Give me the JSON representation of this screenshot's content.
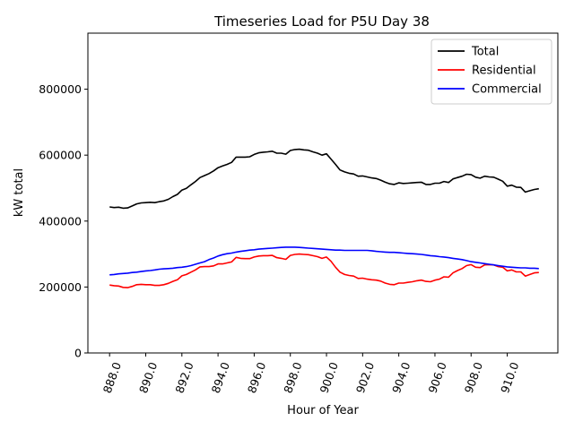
{
  "chart_data": {
    "type": "line",
    "title": "Timeseries Load for P5U   Day 38",
    "xlabel": "Hour of Year",
    "ylabel": "kW total",
    "xlim": [
      886.8,
      912.8
    ],
    "ylim": [
      0,
      970000
    ],
    "xticks": [
      888.0,
      890.0,
      892.0,
      894.0,
      896.0,
      898.0,
      900.0,
      902.0,
      904.0,
      906.0,
      908.0,
      910.0
    ],
    "xtick_labels": [
      "888.0",
      "890.0",
      "892.0",
      "894.0",
      "896.0",
      "898.0",
      "900.0",
      "902.0",
      "904.0",
      "906.0",
      "908.0",
      "910.0"
    ],
    "yticks": [
      0,
      200000,
      400000,
      600000,
      800000
    ],
    "ytick_labels": [
      "0",
      "200000",
      "400000",
      "600000",
      "800000"
    ],
    "legend_position": "top-right",
    "x": [
      888.0,
      888.25,
      888.5,
      888.75,
      889.0,
      889.25,
      889.5,
      889.75,
      890.0,
      890.25,
      890.5,
      890.75,
      891.0,
      891.25,
      891.5,
      891.75,
      892.0,
      892.25,
      892.5,
      892.75,
      893.0,
      893.25,
      893.5,
      893.75,
      894.0,
      894.25,
      894.5,
      894.75,
      895.0,
      895.25,
      895.5,
      895.75,
      896.0,
      896.25,
      896.5,
      896.75,
      897.0,
      897.25,
      897.5,
      897.75,
      898.0,
      898.25,
      898.5,
      898.75,
      899.0,
      899.25,
      899.5,
      899.75,
      900.0,
      900.25,
      900.5,
      900.75,
      901.0,
      901.25,
      901.5,
      901.75,
      902.0,
      902.25,
      902.5,
      902.75,
      903.0,
      903.25,
      903.5,
      903.75,
      904.0,
      904.25,
      904.5,
      904.75,
      905.0,
      905.25,
      905.5,
      905.75,
      906.0,
      906.25,
      906.5,
      906.75,
      907.0,
      907.25,
      907.5,
      907.75,
      908.0,
      908.25,
      908.5,
      908.75,
      909.0,
      909.25,
      909.5,
      909.75,
      910.0,
      910.25,
      910.5,
      910.75,
      911.0,
      911.25,
      911.5,
      911.75
    ],
    "series": [
      {
        "name": "Total",
        "color": "#000000",
        "values": [
          443000,
          441000,
          442000,
          439000,
          440000,
          446000,
          452000,
          455000,
          456000,
          457000,
          456000,
          459000,
          461000,
          466000,
          474000,
          481000,
          494000,
          499000,
          510000,
          520000,
          532000,
          538000,
          544000,
          552000,
          562000,
          567000,
          572000,
          578000,
          594000,
          594000,
          594000,
          595000,
          602000,
          607000,
          609000,
          610000,
          612000,
          606000,
          606000,
          603000,
          614000,
          617000,
          618000,
          616000,
          615000,
          610000,
          606000,
          600000,
          604000,
          588000,
          572000,
          555000,
          549000,
          545000,
          543000,
          536000,
          537000,
          534000,
          531000,
          529000,
          524000,
          518000,
          513000,
          511000,
          516000,
          514000,
          515000,
          516000,
          517000,
          518000,
          511000,
          511000,
          515000,
          515000,
          520000,
          517000,
          528000,
          532000,
          536000,
          542000,
          541000,
          533000,
          530000,
          536000,
          534000,
          533000,
          527000,
          521000,
          506000,
          509000,
          503000,
          502000,
          488000,
          492000,
          496000,
          498000
        ]
      },
      {
        "name": "Residential",
        "color": "#ff0000",
        "values": [
          206000,
          204000,
          203000,
          199000,
          198000,
          202000,
          207000,
          208000,
          207000,
          207000,
          205000,
          205000,
          207000,
          211000,
          217000,
          222000,
          234000,
          238000,
          245000,
          252000,
          261000,
          262000,
          262000,
          264000,
          270000,
          270000,
          273000,
          276000,
          290000,
          287000,
          286000,
          286000,
          291000,
          294000,
          295000,
          295000,
          296000,
          289000,
          287000,
          284000,
          296000,
          299000,
          300000,
          299000,
          298000,
          295000,
          292000,
          287000,
          291000,
          278000,
          260000,
          245000,
          238000,
          235000,
          233000,
          226000,
          227000,
          224000,
          222000,
          221000,
          218000,
          212000,
          208000,
          207000,
          212000,
          212000,
          214000,
          216000,
          219000,
          221000,
          217000,
          216000,
          221000,
          224000,
          231000,
          230000,
          243000,
          250000,
          256000,
          265000,
          268000,
          260000,
          259000,
          267000,
          268000,
          267000,
          262000,
          260000,
          249000,
          252000,
          246000,
          246000,
          233000,
          238000,
          243000,
          244000
        ]
      },
      {
        "name": "Commercial",
        "color": "#0000ff",
        "values": [
          237000,
          238000,
          240000,
          241000,
          242000,
          244000,
          245000,
          247000,
          249000,
          250000,
          252000,
          254000,
          255000,
          256000,
          257000,
          259000,
          260000,
          262000,
          265000,
          269000,
          273000,
          277000,
          283000,
          288000,
          294000,
          298000,
          301000,
          303000,
          306000,
          308000,
          310000,
          312000,
          313000,
          315000,
          316000,
          317000,
          318000,
          319000,
          320000,
          321000,
          321000,
          321000,
          320000,
          319000,
          318000,
          317000,
          316000,
          315000,
          314000,
          313000,
          312000,
          312000,
          311000,
          311000,
          311000,
          311000,
          311000,
          311000,
          310000,
          308000,
          307000,
          306000,
          305000,
          305000,
          304000,
          303000,
          302000,
          301000,
          300000,
          299000,
          297000,
          295000,
          294000,
          292000,
          291000,
          289000,
          287000,
          285000,
          283000,
          280000,
          277000,
          275000,
          273000,
          271000,
          269000,
          267000,
          265000,
          263000,
          261000,
          260000,
          259000,
          258000,
          258000,
          257000,
          257000,
          256000
        ]
      }
    ]
  }
}
